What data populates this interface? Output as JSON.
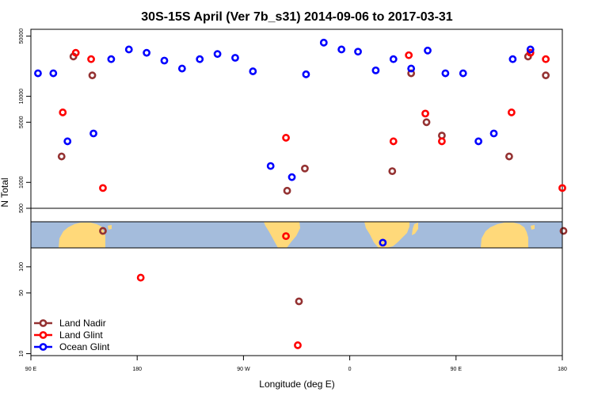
{
  "chart_data": {
    "type": "scatter",
    "title": "30S-15S April (Ver 7b_s31)   2014-09-06 to 2017-03-31",
    "xlabel": "Longitude (deg E)",
    "ylabel": "N Total",
    "xlim": [
      90,
      540
    ],
    "x_ticks": [
      {
        "value": 90,
        "label": "90 E"
      },
      {
        "value": 180,
        "label": "180"
      },
      {
        "value": 270,
        "label": "90 W"
      },
      {
        "value": 360,
        "label": "0"
      },
      {
        "value": 450,
        "label": "90 E"
      },
      {
        "value": 540,
        "label": "180"
      }
    ],
    "top_panel": {
      "scale": "log",
      "ylim": [
        500,
        60000
      ],
      "y_ticks": [
        {
          "value": 500,
          "label": "500"
        },
        {
          "value": 1000,
          "label": "1000"
        },
        {
          "value": 5000,
          "label": "5000"
        },
        {
          "value": 10000,
          "label": "10000"
        },
        {
          "value": 50000,
          "label": "50000"
        }
      ]
    },
    "bottom_panel": {
      "scale": "log",
      "ylim": [
        9.5,
        165
      ],
      "y_ticks": [
        {
          "value": 10,
          "label": "10"
        },
        {
          "value": 50,
          "label": "50"
        },
        {
          "value": 100,
          "label": "100"
        }
      ]
    },
    "legend": {
      "position": "bottom-left"
    },
    "colors": {
      "ocean": "#a4bcdc",
      "land": "#ffd97a"
    },
    "series": [
      {
        "name": "Land Nadir",
        "color": "#943232",
        "top_points": [
          [
            116,
            2000
          ],
          [
            126,
            29000
          ],
          [
            142,
            17500
          ],
          [
            307,
            800
          ],
          [
            322,
            1450
          ],
          [
            396,
            1350
          ],
          [
            412,
            18500
          ],
          [
            425,
            5000
          ],
          [
            438,
            3500
          ],
          [
            495,
            2000
          ],
          [
            511,
            29000
          ],
          [
            526,
            17500
          ]
        ],
        "map_points": [
          [
            151,
            0.35
          ],
          [
            541,
            0.35
          ]
        ],
        "bottom_points": [
          [
            317,
            40
          ]
        ]
      },
      {
        "name": "Land Glint",
        "color": "#ff0000",
        "top_points": [
          [
            117,
            6500
          ],
          [
            128,
            32000
          ],
          [
            141,
            27000
          ],
          [
            151,
            860
          ],
          [
            306,
            3300
          ],
          [
            397,
            3000
          ],
          [
            410,
            30000
          ],
          [
            424,
            6300
          ],
          [
            438,
            3000
          ],
          [
            497,
            6500
          ],
          [
            513,
            32000
          ],
          [
            526,
            27000
          ],
          [
            540,
            860
          ]
        ],
        "map_points": [
          [
            306,
            0.55
          ]
        ],
        "bottom_points": [
          [
            183,
            75
          ],
          [
            316,
            12.5
          ]
        ]
      },
      {
        "name": "Ocean Glint",
        "color": "#0000ff",
        "top_points": [
          [
            96,
            18500
          ],
          [
            109,
            18500
          ],
          [
            121,
            3000
          ],
          [
            143,
            3700
          ],
          [
            158,
            27000
          ],
          [
            173,
            35000
          ],
          [
            188,
            32000
          ],
          [
            203,
            26000
          ],
          [
            218,
            21000
          ],
          [
            233,
            27000
          ],
          [
            248,
            31000
          ],
          [
            263,
            28000
          ],
          [
            278,
            19500
          ],
          [
            293,
            1550
          ],
          [
            311,
            1150
          ],
          [
            323,
            18000
          ],
          [
            338,
            42000
          ],
          [
            353,
            35000
          ],
          [
            367,
            33000
          ],
          [
            382,
            20000
          ],
          [
            397,
            27000
          ],
          [
            412,
            21000
          ],
          [
            426,
            34000
          ],
          [
            441,
            18500
          ],
          [
            456,
            18500
          ],
          [
            469,
            3000
          ],
          [
            482,
            3700
          ],
          [
            498,
            27000
          ],
          [
            513,
            35000
          ]
        ],
        "map_points": [
          [
            388,
            0.8
          ]
        ],
        "bottom_points": []
      }
    ]
  }
}
